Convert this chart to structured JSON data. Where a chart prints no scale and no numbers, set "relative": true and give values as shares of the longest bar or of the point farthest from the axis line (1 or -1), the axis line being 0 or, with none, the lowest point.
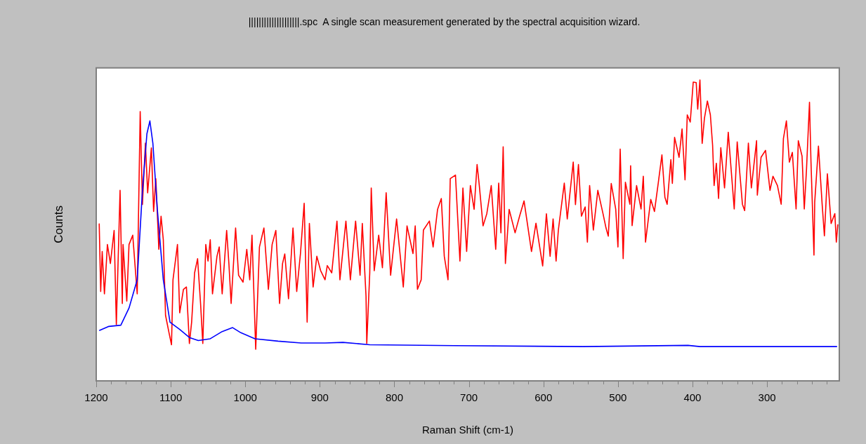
{
  "chart_data": {
    "type": "line",
    "title": "||||||||||||||||||||.spc  A single scan measurement generated by the spectral acquisition wizard.",
    "xlabel": "Raman Shift (cm-1)",
    "ylabel": "Counts",
    "relative": true,
    "legend": false,
    "grid": false,
    "marker": "none",
    "line_style": "solid",
    "tick_labels": "x",
    "xlim": [
      1200,
      203
    ],
    "xticks": [
      1200,
      {
        "value": 1180,
        "label": null
      },
      {
        "value": 1160,
        "label": null
      },
      {
        "value": 1140,
        "label": null
      },
      {
        "value": 1120,
        "label": null
      },
      1100,
      {
        "value": 1080,
        "label": null
      },
      {
        "value": 1060,
        "label": null
      },
      {
        "value": 1040,
        "label": null
      },
      {
        "value": 1020,
        "label": null
      },
      1000,
      {
        "value": 980,
        "label": null
      },
      {
        "value": 960,
        "label": null
      },
      {
        "value": 940,
        "label": null
      },
      {
        "value": 920,
        "label": null
      },
      900,
      {
        "value": 880,
        "label": null
      },
      {
        "value": 860,
        "label": null
      },
      {
        "value": 840,
        "label": null
      },
      {
        "value": 820,
        "label": null
      },
      800,
      {
        "value": 780,
        "label": null
      },
      {
        "value": 760,
        "label": null
      },
      {
        "value": 740,
        "label": null
      },
      {
        "value": 720,
        "label": null
      },
      700,
      {
        "value": 680,
        "label": null
      },
      {
        "value": 660,
        "label": null
      },
      {
        "value": 640,
        "label": null
      },
      {
        "value": 620,
        "label": null
      },
      600,
      {
        "value": 580,
        "label": null
      },
      {
        "value": 560,
        "label": null
      },
      {
        "value": 540,
        "label": null
      },
      {
        "value": 520,
        "label": null
      },
      500,
      {
        "value": 480,
        "label": null
      },
      {
        "value": 460,
        "label": null
      },
      {
        "value": 440,
        "label": null
      },
      {
        "value": 420,
        "label": null
      },
      400,
      {
        "value": 380,
        "label": null
      },
      {
        "value": 360,
        "label": null
      },
      {
        "value": 340,
        "label": null
      },
      {
        "value": 320,
        "label": null
      },
      300,
      {
        "value": 280,
        "label": null
      },
      {
        "value": 260,
        "label": null
      },
      {
        "value": 240,
        "label": null
      },
      {
        "value": 220,
        "label": null
      }
    ],
    "series": [
      {
        "color": "#ff0000",
        "x": [
          1196,
          1194,
          1192,
          1189,
          1187,
          1185,
          1181,
          1176,
          1173,
          1168,
          1165,
          1164,
          1159,
          1156,
          1151,
          1145,
          1141,
          1138,
          1134,
          1131,
          1126,
          1123,
          1120,
          1116,
          1113,
          1110,
          1107,
          1102,
          1099,
          1097,
          1091,
          1088,
          1083,
          1079,
          1075,
          1072,
          1068,
          1064,
          1060,
          1057,
          1053,
          1050,
          1047,
          1044,
          1038,
          1035,
          1031,
          1025,
          1022,
          1019,
          1013,
          1009,
          1003,
          998,
          994,
          991,
          986,
          981,
          975,
          969,
          964,
          959,
          954,
          950,
          947,
          942,
          936,
          931,
          926,
          921,
          917,
          914,
          909,
          904,
          899,
          893,
          890,
          884,
          877,
          873,
          865,
          859,
          852,
          846,
          843,
          838,
          837,
          833,
          831,
          827,
          821,
          816,
          811,
          805,
          797,
          788,
          783,
          775,
          772,
          769,
          764,
          761,
          753,
          748,
          742,
          737,
          733,
          728,
          725,
          718,
          712,
          708,
          703,
          698,
          693,
          689,
          686,
          681,
          676,
          670,
          664,
          660,
          657,
          654,
          651,
          646,
          638,
          632,
          626,
          616,
          610,
          601,
          596,
          591,
          587,
          583,
          580,
          572,
          568,
          560,
          557,
          553,
          549,
          544,
          541,
          538,
          533,
          527,
          520,
          516,
          513,
          509,
          503,
          500,
          497,
          493,
          490,
          484,
          483,
          481,
          475,
          469,
          466,
          463,
          456,
          451,
          446,
          441,
          437,
          434,
          429,
          427,
          424,
          418,
          414,
          410,
          407,
          403,
          399,
          395,
          393,
          390,
          387,
          384,
          380,
          376,
          373,
          371,
          368,
          365,
          362,
          357,
          352,
          344,
          340,
          333,
          330,
          325,
          321,
          314,
          313,
          308,
          302,
          296,
          292,
          286,
          281,
          278,
          274,
          270,
          266,
          261,
          258,
          253,
          250,
          247,
          243,
          241,
          237,
          236,
          231,
          226,
          223,
          219,
          214,
          209,
          207,
          205
        ],
        "values": [
          0.523,
          0.297,
          0.43,
          0.289,
          0.367,
          0.453,
          0.39,
          0.5,
          0.187,
          0.633,
          0.257,
          0.453,
          0.265,
          0.453,
          0.484,
          0.289,
          0.895,
          0.586,
          0.79,
          0.625,
          0.774,
          0.563,
          0.672,
          0.437,
          0.547,
          0.469,
          0.218,
          0.156,
          0.12,
          0.336,
          0.453,
          0.226,
          0.304,
          0.312,
          0.124,
          0.195,
          0.359,
          0.406,
          0.257,
          0.124,
          0.453,
          0.398,
          0.469,
          0.289,
          0.414,
          0.445,
          0.289,
          0.5,
          0.39,
          0.257,
          0.508,
          0.351,
          0.328,
          0.437,
          0.336,
          0.484,
          0.105,
          0.445,
          0.508,
          0.304,
          0.453,
          0.5,
          0.257,
          0.39,
          0.422,
          0.273,
          0.508,
          0.297,
          0.422,
          0.59,
          0.195,
          0.523,
          0.312,
          0.414,
          0.367,
          0.336,
          0.383,
          0.359,
          0.531,
          0.336,
          0.531,
          0.336,
          0.531,
          0.351,
          0.523,
          0.281,
          0.124,
          0.359,
          0.641,
          0.366,
          0.484,
          0.376,
          0.625,
          0.351,
          0.538,
          0.312,
          0.515,
          0.423,
          0.515,
          0.304,
          0.336,
          0.501,
          0.531,
          0.445,
          0.57,
          0.606,
          0.414,
          0.336,
          0.672,
          0.684,
          0.398,
          0.641,
          0.43,
          0.649,
          0.57,
          0.719,
          0.649,
          0.515,
          0.555,
          0.649,
          0.437,
          0.657,
          0.492,
          0.778,
          0.39,
          0.57,
          0.492,
          0.547,
          0.598,
          0.43,
          0.524,
          0.382,
          0.555,
          0.414,
          0.538,
          0.398,
          0.5,
          0.657,
          0.538,
          0.727,
          0.586,
          0.719,
          0.547,
          0.578,
          0.461,
          0.649,
          0.501,
          0.633,
          0.555,
          0.508,
          0.481,
          0.656,
          0.571,
          0.445,
          0.77,
          0.406,
          0.66,
          0.587,
          0.715,
          0.516,
          0.649,
          0.571,
          0.68,
          0.461,
          0.603,
          0.563,
          0.656,
          0.751,
          0.61,
          0.587,
          0.735,
          0.656,
          0.809,
          0.743,
          0.837,
          0.668,
          0.884,
          0.86,
          0.993,
          0.991,
          0.903,
          1,
          0.789,
          0.872,
          0.93,
          0.884,
          0.783,
          0.649,
          0.723,
          0.606,
          0.775,
          0.641,
          0.826,
          0.571,
          0.794,
          0.587,
          0.566,
          0.79,
          0.641,
          0.798,
          0.617,
          0.743,
          0.766,
          0.633,
          0.68,
          0.649,
          0.587,
          0.805,
          0.864,
          0.727,
          0.759,
          0.571,
          0.798,
          0.747,
          0.571,
          0.704,
          0.926,
          0.727,
          0.418,
          0.594,
          0.78,
          0.586,
          0.482,
          0.688,
          0.523,
          0.556,
          0.461,
          0.52
        ]
      },
      {
        "color": "#0000ff",
        "x": [
          1196,
          1183,
          1167,
          1156,
          1145,
          1138,
          1132,
          1128,
          1124,
          1118,
          1110,
          1101,
          1088,
          1075,
          1063,
          1047,
          1031,
          1017,
          1006,
          987,
          956,
          925,
          893,
          869,
          833,
          720,
          547,
          406,
          390,
          206
        ],
        "values": [
          0.167,
          0.181,
          0.185,
          0.242,
          0.336,
          0.633,
          0.821,
          0.864,
          0.79,
          0.57,
          0.336,
          0.195,
          0.171,
          0.144,
          0.134,
          0.14,
          0.164,
          0.177,
          0.16,
          0.14,
          0.132,
          0.126,
          0.126,
          0.128,
          0.12,
          0.117,
          0.114,
          0.118,
          0.114,
          0.114
        ]
      }
    ]
  }
}
